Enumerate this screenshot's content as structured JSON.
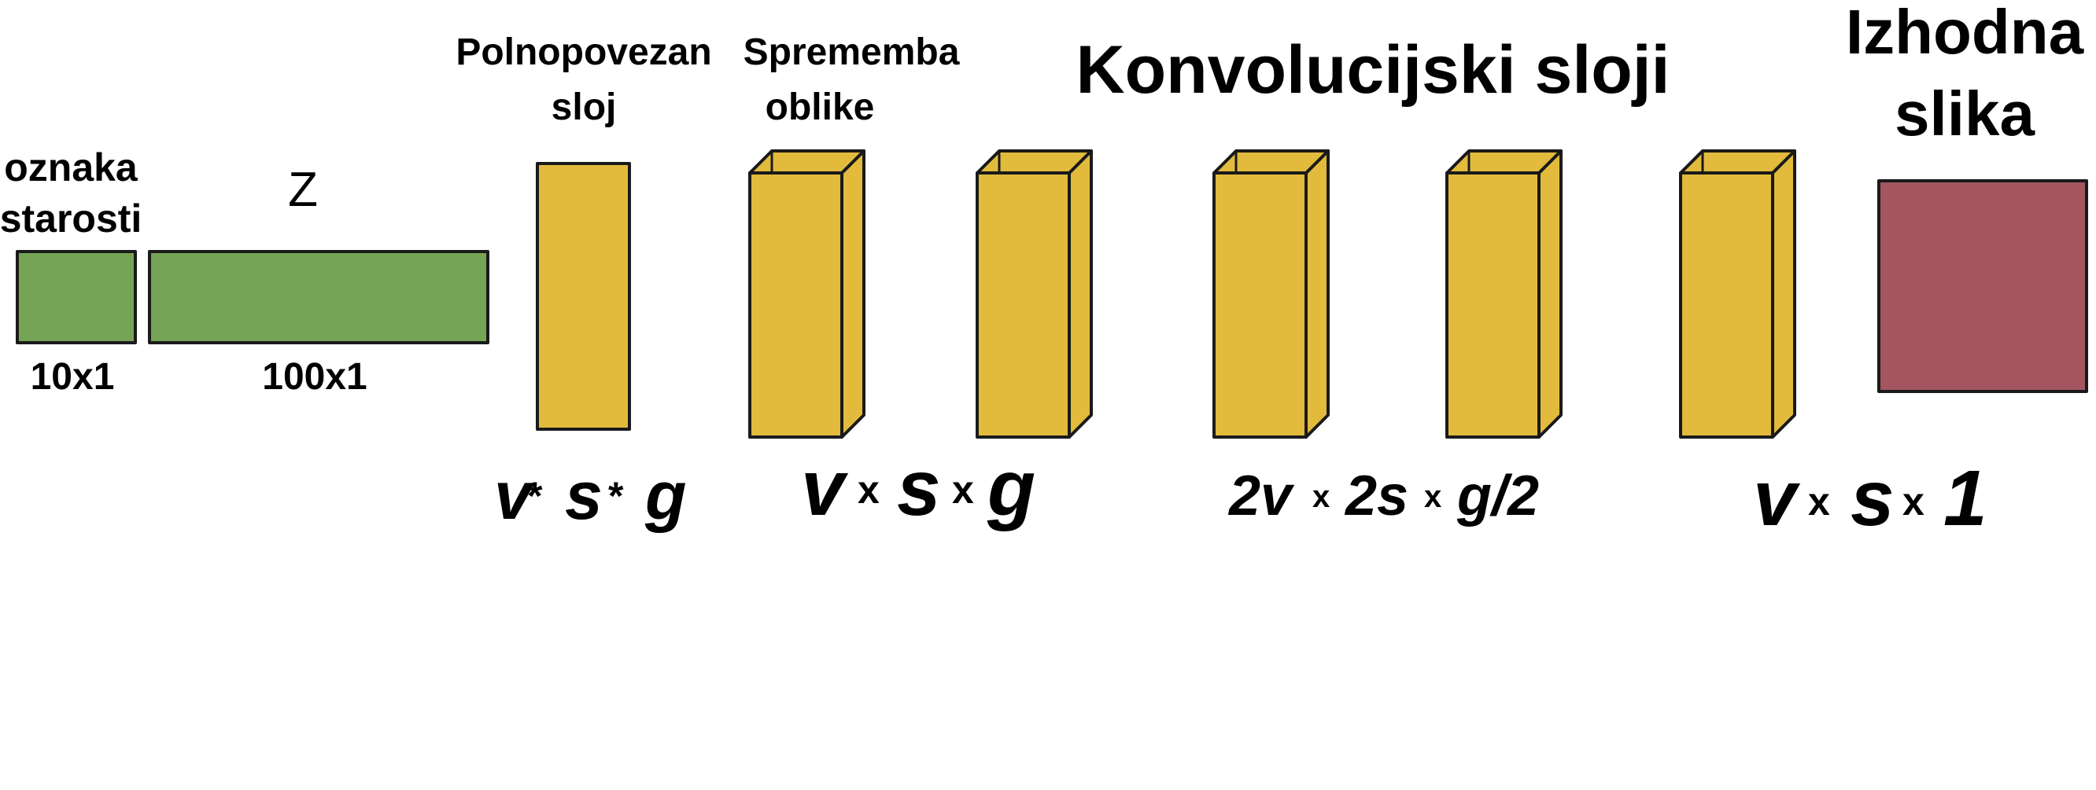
{
  "colors": {
    "input": "#76a456",
    "layer": "#e2bb3d",
    "layer_side": "#e2bb3d",
    "output": "#a35560",
    "stroke": "#1a1a1a"
  },
  "inputs": {
    "age_label_line1": "oznaka",
    "age_label_line2": "starosti",
    "age_size": "10x1",
    "z_label": "Z",
    "z_size": "100x1"
  },
  "fully_connected": {
    "title_line1": "Polnopovezan",
    "title_line2": "sloj",
    "dim_v": "v",
    "dim_op1": "*",
    "dim_s": "s",
    "dim_op2": "*",
    "dim_g": "g"
  },
  "reshape": {
    "title_line1": "Sprememba",
    "title_line2": "oblike",
    "dim_v": "v",
    "dim_op1": "x",
    "dim_s": "s",
    "dim_op2": "x",
    "dim_g": "g"
  },
  "conv": {
    "title": "Konvolucijski sloji",
    "dim_a": "2v",
    "dim_op1": "x",
    "dim_b": "2s",
    "dim_op2": "x",
    "dim_c": "g/2"
  },
  "final_layer": {
    "dim_v": "v",
    "dim_op1": "x",
    "dim_s": "s",
    "dim_op2": "x",
    "dim_c": "1"
  },
  "output": {
    "title_line1": "Izhodna",
    "title_line2": "slika"
  }
}
